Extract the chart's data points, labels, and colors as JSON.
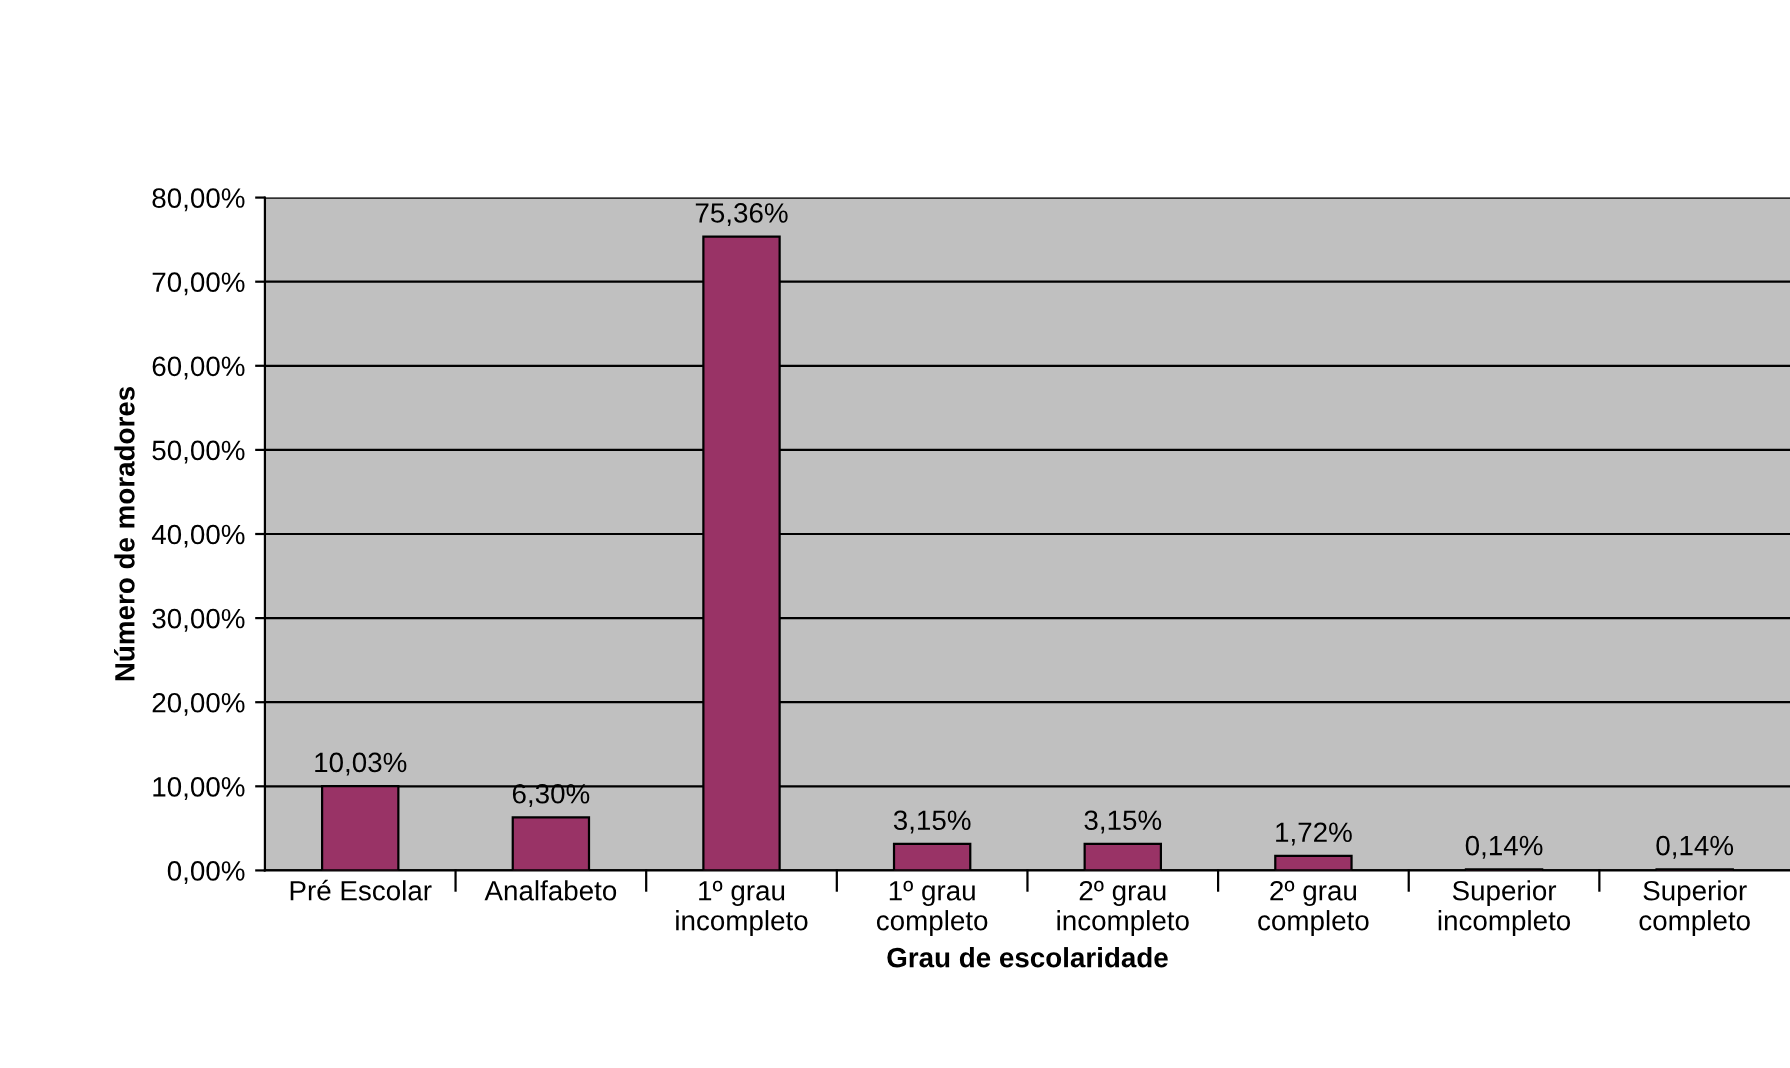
{
  "chart_data": {
    "type": "bar",
    "xlabel": "Grau de escolaridade",
    "ylabel": "Número de moradores",
    "categories": [
      "Pré Escolar",
      "Analfabeto",
      "1º grau\nincompleto",
      "1º grau\ncompleto",
      "2º grau\nincompleto",
      "2º grau\ncompleto",
      "Superior\nincompleto",
      "Superior\ncompleto"
    ],
    "values": [
      10.03,
      6.3,
      75.36,
      3.15,
      3.15,
      1.72,
      0.14,
      0.14
    ],
    "value_labels": [
      "10,03%",
      "6,30%",
      "75,36%",
      "3,15%",
      "3,15%",
      "1,72%",
      "0,14%",
      "0,14%"
    ],
    "color": "#993366",
    "ylim": [
      0,
      80
    ],
    "yticks": [
      {
        "value": 0,
        "label": "0,00%"
      },
      {
        "value": 10,
        "label": "10,00%"
      },
      {
        "value": 20,
        "label": "20,00%"
      },
      {
        "value": 30,
        "label": "30,00%"
      },
      {
        "value": 40,
        "label": "40,00%"
      },
      {
        "value": 50,
        "label": "50,00%"
      },
      {
        "value": 60,
        "label": "60,00%"
      },
      {
        "value": 70,
        "label": "70,00%"
      },
      {
        "value": 80,
        "label": "80,00%"
      }
    ],
    "grid": "y",
    "legend": false
  }
}
